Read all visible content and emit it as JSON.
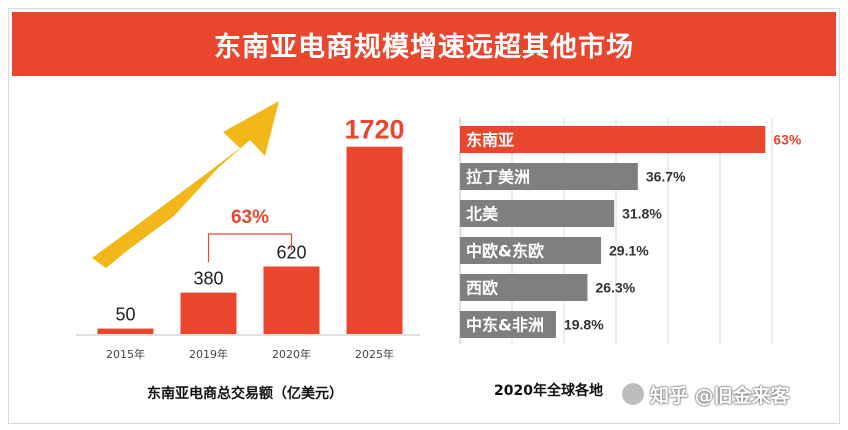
{
  "banner": {
    "title": "东南亚电商规模增速远超其他市场"
  },
  "chart_data": [
    {
      "type": "bar",
      "categories": [
        "2015年",
        "2019年",
        "2020年",
        "2025年"
      ],
      "values": [
        50,
        380,
        620,
        1720
      ],
      "value_labels": [
        "50",
        "380",
        "620",
        "1720"
      ],
      "highlight_label": "63%",
      "highlight_between": [
        "2019年",
        "2020年"
      ],
      "caption": "东南亚电商总交易额（亿美元）",
      "title": "",
      "xlabel": "",
      "ylabel": "",
      "ylim": [
        0,
        1800
      ],
      "colors": {
        "bar": "#e8472e",
        "arrow": "#f2b81a",
        "emphasis": "#e8472e"
      }
    },
    {
      "type": "bar",
      "orientation": "horizontal",
      "categories": [
        "东南亚",
        "拉丁美洲",
        "北美",
        "中欧&东欧",
        "西欧",
        "中东&非洲"
      ],
      "values": [
        63,
        36.7,
        31.8,
        29.1,
        26.3,
        19.8
      ],
      "value_labels": [
        "63%",
        "36.7%",
        "31.8%",
        "29.1%",
        "26.3%",
        "19.8%"
      ],
      "caption_visible": "2020年全球各地",
      "title": "",
      "xlabel": "",
      "ylabel": "",
      "xlim": [
        0,
        65
      ],
      "grid": true,
      "colors": {
        "highlight": "#e8472e",
        "bar": "#7f7f7f"
      }
    }
  ],
  "watermark": {
    "text": "知乎 @旧金来客"
  }
}
